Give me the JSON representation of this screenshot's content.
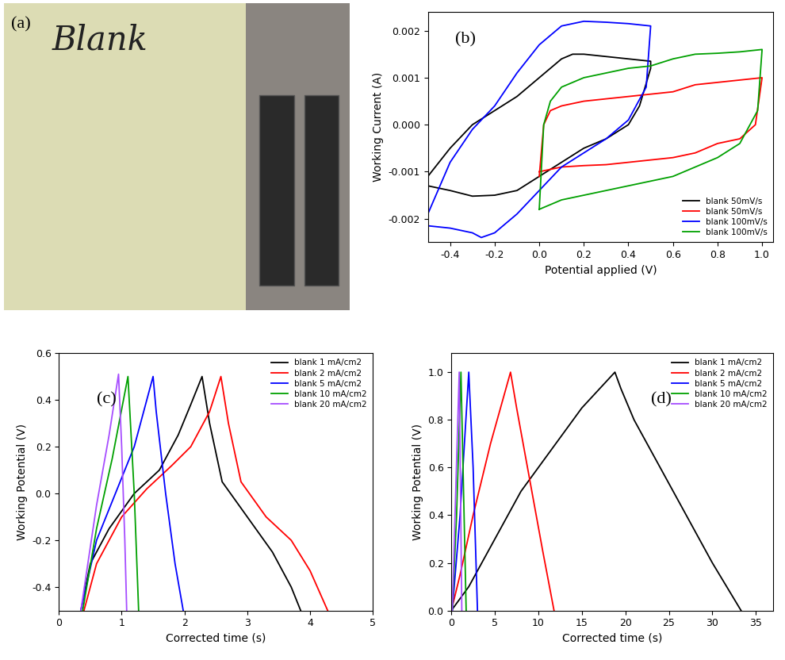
{
  "chart_data": [
    {
      "type": "photo",
      "annotations": [
        "(a)",
        "Blank"
      ]
    },
    {
      "type": "line",
      "annotations": [
        "(b)"
      ],
      "x_label": "Potential applied (V)",
      "y_label": "Working Current (A)",
      "xlim": [
        -0.5,
        1.05
      ],
      "ylim": [
        -0.0025,
        0.0024
      ],
      "xticks": [
        -0.4,
        -0.2,
        0.0,
        0.2,
        0.4,
        0.6,
        0.8,
        1.0
      ],
      "yticks": [
        -0.002,
        -0.001,
        {
          "value": 0,
          "label": "0.000"
        },
        0.001,
        0.002
      ],
      "legend": "lower right",
      "series": [
        {
          "name": "blank 50mV/s",
          "color": "#000000",
          "x": [
            -0.5,
            -0.4,
            -0.3,
            -0.2,
            -0.1,
            0.0,
            0.1,
            0.15,
            0.2,
            0.3,
            0.4,
            0.5,
            0.5,
            0.45,
            0.4,
            0.3,
            0.2,
            0.1,
            0.0,
            -0.1,
            -0.2,
            -0.3,
            -0.4,
            -0.5
          ],
          "values": [
            -0.0011,
            -0.0005,
            0.0,
            0.0003,
            0.0006,
            0.001,
            0.0014,
            0.0015,
            0.0015,
            0.00145,
            0.0014,
            0.00135,
            0.0012,
            0.0004,
            0.0,
            -0.0003,
            -0.0005,
            -0.0008,
            -0.0011,
            -0.0014,
            -0.0015,
            -0.00152,
            -0.0014,
            -0.0013
          ]
        },
        {
          "name": "blank 50mV/s",
          "color": "#ff0000",
          "x": [
            0.0,
            0.02,
            0.05,
            0.1,
            0.2,
            0.3,
            0.4,
            0.5,
            0.6,
            0.7,
            0.8,
            0.9,
            1.0,
            0.97,
            0.9,
            0.8,
            0.7,
            0.6,
            0.5,
            0.4,
            0.3,
            0.2,
            0.1,
            0.0
          ],
          "values": [
            -0.0011,
            0.0,
            0.0003,
            0.0004,
            0.0005,
            0.00055,
            0.0006,
            0.00065,
            0.0007,
            0.00085,
            0.0009,
            0.00095,
            0.001,
            0.0,
            -0.0003,
            -0.0004,
            -0.0006,
            -0.0007,
            -0.00075,
            -0.0008,
            -0.00085,
            -0.00087,
            -0.0009,
            -0.001
          ]
        },
        {
          "name": "blank 100mV/s",
          "color": "#0000ff",
          "x": [
            -0.5,
            -0.4,
            -0.3,
            -0.2,
            -0.1,
            0.0,
            0.1,
            0.2,
            0.3,
            0.4,
            0.5,
            0.48,
            0.4,
            0.3,
            0.2,
            0.1,
            0.0,
            -0.1,
            -0.2,
            -0.26,
            -0.3,
            -0.4,
            -0.5
          ],
          "values": [
            -0.0019,
            -0.0008,
            -0.0001,
            0.0004,
            0.0011,
            0.0017,
            0.0021,
            0.0022,
            0.00218,
            0.00215,
            0.0021,
            0.0008,
            0.0001,
            -0.0003,
            -0.0006,
            -0.0009,
            -0.0014,
            -0.0019,
            -0.0023,
            -0.0024,
            -0.0023,
            -0.0022,
            -0.00215
          ]
        },
        {
          "name": "blank 100mV/s",
          "color": "#00a000",
          "x": [
            0.0,
            0.02,
            0.05,
            0.1,
            0.2,
            0.3,
            0.4,
            0.5,
            0.6,
            0.7,
            0.8,
            0.9,
            1.0,
            0.98,
            0.9,
            0.8,
            0.7,
            0.6,
            0.5,
            0.4,
            0.3,
            0.2,
            0.1,
            0.0
          ],
          "values": [
            -0.0018,
            0.0,
            0.0005,
            0.0008,
            0.001,
            0.0011,
            0.0012,
            0.00125,
            0.0014,
            0.0015,
            0.00152,
            0.00155,
            0.0016,
            0.0003,
            -0.0004,
            -0.0007,
            -0.0009,
            -0.0011,
            -0.0012,
            -0.0013,
            -0.0014,
            -0.0015,
            -0.0016,
            -0.0018
          ]
        }
      ]
    },
    {
      "type": "line",
      "annotations": [
        "(c)"
      ],
      "x_label": "Corrected time (s)",
      "y_label": "Working Potential (V)",
      "xlim": [
        0,
        5
      ],
      "ylim": [
        -0.5,
        0.6
      ],
      "xticks": [
        0,
        1,
        2,
        3,
        4,
        5
      ],
      "yticks": [
        -0.4,
        -0.2,
        0.0,
        0.2,
        0.4,
        0.6
      ],
      "legend": "upper right",
      "series": [
        {
          "name": "blank 1 mA/cm2",
          "color": "#000000",
          "x": [
            0.35,
            0.5,
            0.8,
            1.2,
            1.6,
            1.9,
            2.1,
            2.28,
            2.4,
            2.6,
            3.0,
            3.4,
            3.7,
            3.85
          ],
          "values": [
            -0.5,
            -0.3,
            -0.15,
            0.0,
            0.1,
            0.25,
            0.38,
            0.5,
            0.3,
            0.05,
            -0.1,
            -0.25,
            -0.4,
            -0.5
          ]
        },
        {
          "name": "blank 2 mA/cm2",
          "color": "#ff0000",
          "x": [
            0.4,
            0.6,
            1.0,
            1.4,
            1.8,
            2.1,
            2.4,
            2.58,
            2.7,
            2.9,
            3.3,
            3.7,
            4.0,
            4.28
          ],
          "values": [
            -0.5,
            -0.3,
            -0.1,
            0.02,
            0.12,
            0.2,
            0.35,
            0.5,
            0.3,
            0.05,
            -0.1,
            -0.2,
            -0.33,
            -0.5
          ]
        },
        {
          "name": "blank 5 mA/cm2",
          "color": "#0000ff",
          "x": [
            0.35,
            0.6,
            0.9,
            1.2,
            1.5,
            1.55,
            1.7,
            1.85,
            1.98
          ],
          "values": [
            -0.5,
            -0.2,
            0.0,
            0.2,
            0.5,
            0.35,
            0.0,
            -0.3,
            -0.5
          ]
        },
        {
          "name": "blank 10 mA/cm2",
          "color": "#00a000",
          "x": [
            0.38,
            0.6,
            0.85,
            1.1,
            1.14,
            1.2,
            1.27
          ],
          "values": [
            -0.5,
            -0.15,
            0.15,
            0.5,
            0.3,
            0.0,
            -0.5
          ]
        },
        {
          "name": "blank 20 mA/cm2",
          "color": "#a64dff",
          "x": [
            0.35,
            0.6,
            0.8,
            0.95,
            1.0,
            1.05,
            1.08
          ],
          "values": [
            -0.5,
            -0.05,
            0.25,
            0.51,
            0.2,
            -0.2,
            -0.5
          ]
        }
      ]
    },
    {
      "type": "line",
      "annotations": [
        "(d)"
      ],
      "x_label": "Corrected time (s)",
      "y_label": "Working Potential (V)",
      "xlim": [
        0,
        37
      ],
      "ylim": [
        0,
        1.08
      ],
      "xticks": [
        0,
        5,
        10,
        15,
        20,
        25,
        30,
        35
      ],
      "yticks": [
        0.0,
        0.2,
        0.4,
        0.6,
        0.8,
        1.0
      ],
      "legend": "upper right",
      "series": [
        {
          "name": "blank 1 mA/cm2",
          "color": "#000000",
          "x": [
            0,
            2,
            5,
            8,
            12,
            15,
            18.8,
            19.5,
            21,
            24,
            27,
            30,
            33.3
          ],
          "values": [
            0,
            0.1,
            0.3,
            0.5,
            0.7,
            0.85,
            1.0,
            0.93,
            0.8,
            0.6,
            0.4,
            0.2,
            0.0
          ]
        },
        {
          "name": "blank 2 mA/cm2",
          "color": "#ff0000",
          "x": [
            0,
            1,
            2.5,
            4.5,
            6.8,
            7.5,
            9,
            10.5,
            11.8
          ],
          "values": [
            0,
            0.15,
            0.4,
            0.7,
            1.0,
            0.85,
            0.55,
            0.25,
            0.0
          ]
        },
        {
          "name": "blank 5 mA/cm2",
          "color": "#0000ff",
          "x": [
            0.1,
            1,
            2,
            2.5,
            3.0
          ],
          "values": [
            0,
            0.4,
            1.0,
            0.6,
            0.0
          ]
        },
        {
          "name": "blank 10 mA/cm2",
          "color": "#00a000",
          "x": [
            0.1,
            0.6,
            1.1,
            1.4,
            1.7
          ],
          "values": [
            0,
            0.4,
            1.0,
            0.5,
            0.0
          ]
        },
        {
          "name": "blank 20 mA/cm2",
          "color": "#a64dff",
          "x": [
            0.1,
            0.5,
            0.9,
            1.05,
            1.2
          ],
          "values": [
            0,
            0.5,
            1.0,
            0.5,
            0.0
          ]
        }
      ]
    }
  ]
}
